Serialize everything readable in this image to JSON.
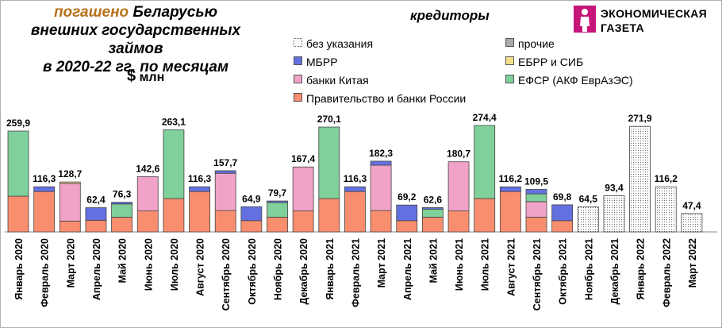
{
  "title": {
    "accent": "погашено",
    "line1_rest": " Беларусью",
    "line2": "внешних государственных займов",
    "line3": "в 2020-22 гг. по месяцам"
  },
  "unit": {
    "symbol": "$",
    "text": " млн"
  },
  "legend_title": "кредиторы",
  "logo": {
    "line1": "ЭКОНОМИЧЕСКАЯ",
    "line2": "ГАЗЕТА",
    "color": "#c6167a"
  },
  "chart_data": {
    "type": "bar",
    "stacked": true,
    "ylim": [
      0,
      290
    ],
    "grid": false,
    "legend_position": "top-right",
    "categories": [
      "Январь 2020",
      "Февраль 2020",
      "Март 2020",
      "Апрель 2020",
      "Май 2020",
      "Июнь 2020",
      "Июль 2020",
      "Август 2020",
      "Сентябрь 2020",
      "Октябрь 2020",
      "Ноябрь 2020",
      "Декабрь 2020",
      "Январь 2021",
      "Февраль 2021",
      "Март 2021",
      "Апрель 2021",
      "Май 2021",
      "Июнь 2021",
      "Июль 2021",
      "Август 2021",
      "Сентябрь 2021",
      "Октябрь 2021",
      "Ноябрь 2021",
      "Декабрь 2021",
      "Январь 2022",
      "Февраль 2022",
      "Март 2022"
    ],
    "totals": [
      259.9,
      116.3,
      128.7,
      62.4,
      76.3,
      142.6,
      263.1,
      116.3,
      157.7,
      64.9,
      79.7,
      167.4,
      270.1,
      116.3,
      182.3,
      69.2,
      62.6,
      180.7,
      274.4,
      116.2,
      109.5,
      69.8,
      64.5,
      93.4,
      271.9,
      116.2,
      47.4
    ],
    "total_labels": [
      "259,9",
      "116,3",
      "128,7",
      "62,4",
      "76,3",
      "142,6",
      "263,1",
      "116,3",
      "157,7",
      "64,9",
      "79,7",
      "167,4",
      "270,1",
      "116,3",
      "182,3",
      "69,2",
      "62,6",
      "180,7",
      "274,4",
      "116,2",
      "109,5",
      "69,8",
      "64,5",
      "93,4",
      "271,9",
      "116,2",
      "47,4"
    ],
    "series": [
      {
        "name": "Правительство и банки России",
        "color": "#f98e6e",
        "values": [
          92,
          104,
          28,
          30,
          38,
          54,
          86,
          104,
          55,
          29,
          38,
          54,
          86,
          104,
          55,
          29,
          38,
          54,
          86,
          104,
          38,
          29,
          0,
          0,
          0,
          0,
          0
        ]
      },
      {
        "name": "банки Китая",
        "color": "#f0a2c7",
        "values": [
          0,
          0,
          97,
          0,
          0,
          88.6,
          0,
          0,
          96,
          0,
          0,
          113.4,
          0,
          0,
          117,
          0,
          0,
          126.7,
          0,
          0,
          40,
          0,
          0,
          0,
          0,
          0,
          0
        ]
      },
      {
        "name": "ЕФСР (АКФ ЕврАзЭС)",
        "color": "#7fd09a",
        "values": [
          167.9,
          0,
          0,
          0,
          34,
          0,
          177.1,
          0,
          0,
          0,
          37.7,
          0,
          184.1,
          0,
          0,
          0,
          20.6,
          0,
          188.4,
          0,
          20,
          0,
          0,
          0,
          0,
          0,
          0
        ]
      },
      {
        "name": "ЕБРР и СИБ",
        "color": "#f7e089",
        "values": [
          0,
          0,
          3.7,
          0,
          0,
          0,
          0,
          0,
          0,
          0,
          0,
          0,
          0,
          0,
          0,
          0,
          0,
          0,
          0,
          0,
          0,
          0,
          0,
          0,
          0,
          0,
          0
        ]
      },
      {
        "name": "МБРР",
        "color": "#6470e0",
        "values": [
          0,
          12.3,
          0,
          32.4,
          4.3,
          0,
          0,
          12.3,
          6.7,
          35.9,
          4,
          0,
          0,
          12.3,
          10.3,
          40.2,
          4,
          0,
          0,
          12.2,
          11.5,
          40.8,
          0,
          0,
          0,
          0,
          0
        ]
      },
      {
        "name": "прочие",
        "color": "#a9a9a9",
        "values": [
          0,
          0,
          0,
          0,
          0,
          0,
          0,
          0,
          0,
          0,
          0,
          0,
          0,
          0,
          0,
          0,
          0,
          0,
          0,
          0,
          0,
          0,
          0,
          0,
          0,
          0,
          0
        ]
      },
      {
        "name": "без указания",
        "color": "#ffffff",
        "values": [
          0,
          0,
          0,
          0,
          0,
          0,
          0,
          0,
          0,
          0,
          0,
          0,
          0,
          0,
          0,
          0,
          0,
          0,
          0,
          0,
          0,
          0,
          64.5,
          93.4,
          271.9,
          116.2,
          47.4
        ]
      }
    ]
  }
}
